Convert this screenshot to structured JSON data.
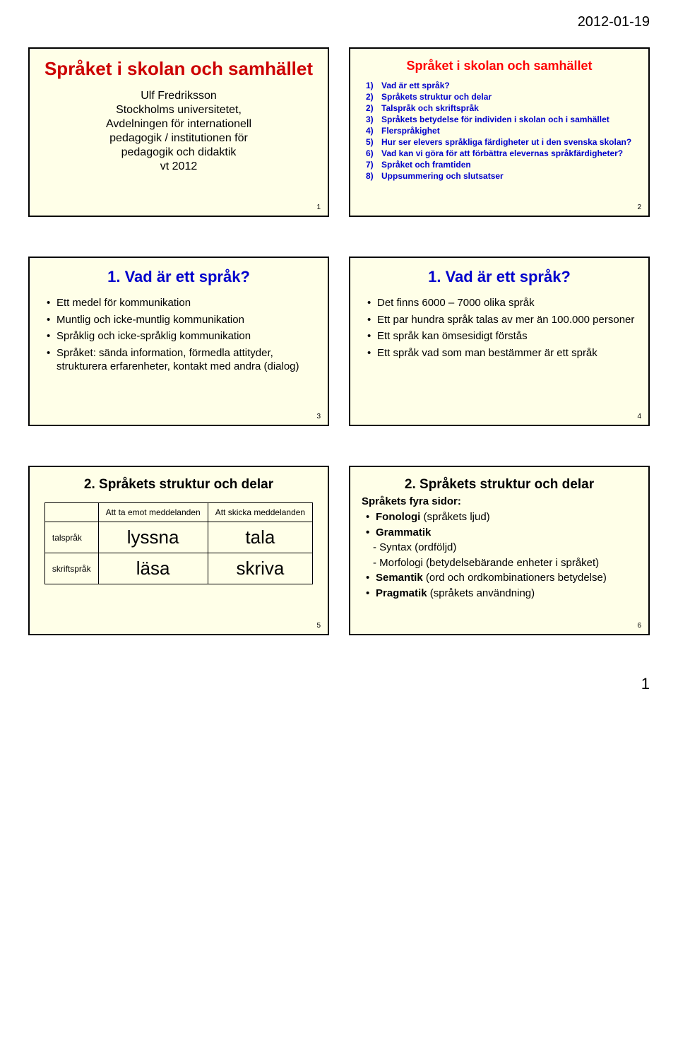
{
  "header": {
    "date": "2012-01-19"
  },
  "footer": {
    "page": "1"
  },
  "slides": {
    "s1": {
      "num": "1",
      "title": "Språket i skolan och samhället",
      "author": "Ulf Fredriksson",
      "inst1": "Stockholms universitetet,",
      "inst2": "Avdelningen för internationell",
      "inst3": "pedagogik / institutionen för",
      "inst4": "pedagogik och didaktik",
      "term": "vt 2012"
    },
    "s2": {
      "num": "2",
      "title": "Språket i skolan och samhället",
      "items": [
        {
          "n": "1)",
          "t": "Vad är ett språk?"
        },
        {
          "n": "2)",
          "t": "Språkets struktur och delar"
        },
        {
          "n": "2)",
          "t": "Talspråk och skriftspråk"
        },
        {
          "n": "3)",
          "t": "Språkets betydelse för individen i skolan och i samhället"
        },
        {
          "n": "4)",
          "t": "Flerspråkighet"
        },
        {
          "n": "5)",
          "t": "Hur ser elevers språkliga färdigheter ut i den svenska skolan?"
        },
        {
          "n": "6)",
          "t": "Vad kan vi göra för att förbättra elevernas språkfärdigheter?"
        },
        {
          "n": "7)",
          "t": "Språket och framtiden"
        },
        {
          "n": "8)",
          "t": "Uppsummering och slutsatser"
        }
      ]
    },
    "s3": {
      "num": "3",
      "title": "1. Vad är ett språk?",
      "bullets": [
        "Ett medel för kommunikation",
        "Muntlig och icke-muntlig kommunikation",
        "Språklig och icke-språklig kommunikation",
        "Språket: sända information, förmedla attityder, strukturera erfarenheter, kontakt med andra (dialog)"
      ]
    },
    "s4": {
      "num": "4",
      "title": "1. Vad är ett språk?",
      "bullets": [
        "Det finns 6000 – 7000 olika språk",
        "Ett par hundra språk talas av mer än 100.000 personer",
        "Ett språk kan ömsesidigt förstås",
        "Ett språk vad som man bestämmer är ett språk"
      ]
    },
    "s5": {
      "num": "5",
      "title": "2. Språkets struktur och delar",
      "col1": "Att ta emot meddelanden",
      "col2": "Att skicka meddelanden",
      "row1": "talspråk",
      "row2": "skriftspråk",
      "c11": "lyssna",
      "c12": "tala",
      "c21": "läsa",
      "c22": "skriva"
    },
    "s6": {
      "num": "6",
      "title": "2. Språkets struktur och delar",
      "sub": "Språkets fyra sidor:",
      "l1": "Fonologi",
      "l1b": " (språkets ljud)",
      "l2": "Grammatik",
      "l3": "- Syntax (ordföljd)",
      "l4": "- Morfologi (betydelsebärande enheter i språket)",
      "l5": "Semantik",
      "l5b": " (ord och ordkombinationers betydelse)",
      "l6": "Pragmatik",
      "l6b": " (språkets användning)"
    }
  }
}
